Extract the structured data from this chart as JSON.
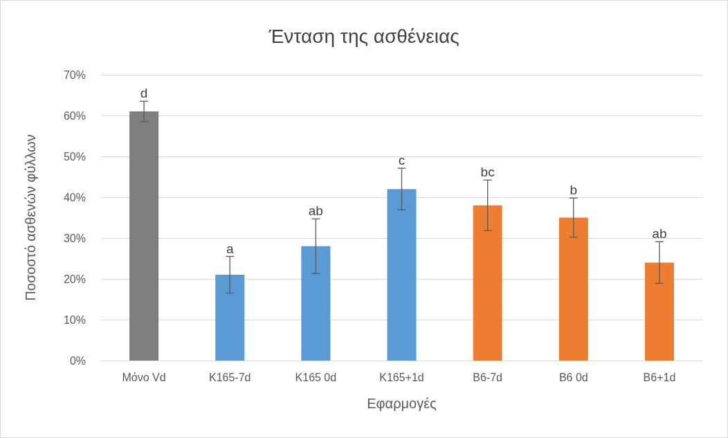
{
  "chart_data": {
    "type": "bar",
    "title": "Ένταση της ασθένειας",
    "xlabel": "Εφαρμογές",
    "ylabel": "Ποσοστό ασθενών φύλλων",
    "categories": [
      "Μόνο Vd",
      "K165-7d",
      "K165 0d",
      "K165+1d",
      "B6-7d",
      "B6 0d",
      "B6+1d"
    ],
    "values": [
      61,
      21,
      28,
      42,
      38,
      35,
      24
    ],
    "colors": [
      "#7f7f7f",
      "#5b9bd5",
      "#5b9bd5",
      "#5b9bd5",
      "#ed7d31",
      "#ed7d31",
      "#ed7d31"
    ],
    "errors": [
      2.5,
      4.5,
      6.7,
      5.1,
      6.2,
      4.8,
      5.1
    ],
    "ylim": [
      0,
      70
    ],
    "yticks": [
      {
        "value": 0,
        "label": "0%"
      },
      {
        "value": 10,
        "label": "10%"
      },
      {
        "value": 20,
        "label": "20%"
      },
      {
        "value": 30,
        "label": "30%"
      },
      {
        "value": 40,
        "label": "40%"
      },
      {
        "value": 50,
        "label": "50%"
      },
      {
        "value": 60,
        "label": "60%"
      },
      {
        "value": 70,
        "label": "70%"
      }
    ],
    "grid": "y",
    "annotations": [
      {
        "text": "d",
        "x": "Μόνο Vd",
        "y": 63.5
      },
      {
        "text": "a",
        "x": "K165-7d",
        "y": 25.5
      },
      {
        "text": "ab",
        "x": "K165 0d",
        "y": 34.7
      },
      {
        "text": "c",
        "x": "K165+1d",
        "y": 47.1
      },
      {
        "text": "bc",
        "x": "B6-7d",
        "y": 44.2
      },
      {
        "text": "b",
        "x": "B6 0d",
        "y": 39.8
      },
      {
        "text": "ab",
        "x": "B6+1d",
        "y": 29.1
      }
    ]
  }
}
